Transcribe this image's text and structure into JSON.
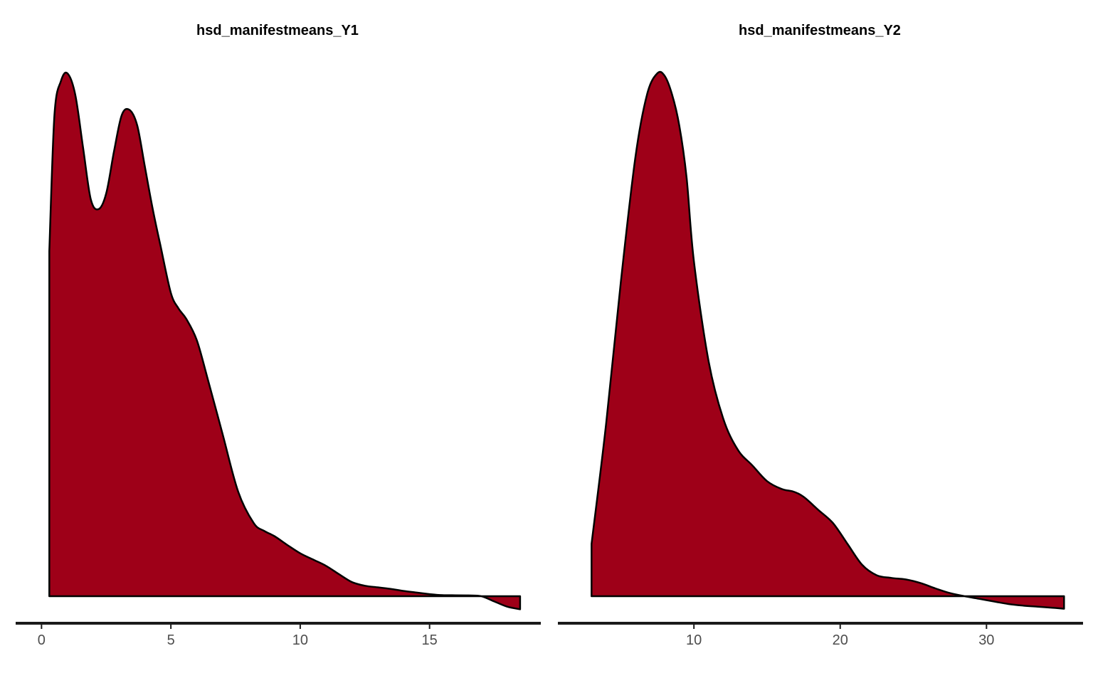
{
  "chart_data": [
    {
      "type": "area",
      "title": "hsd_manifestmeans_Y1",
      "xlabel": "",
      "ylabel": "",
      "xlim": [
        -1.0,
        19.3
      ],
      "xticks": [
        0,
        5,
        10,
        15
      ],
      "tick_labels": [
        "0",
        "5",
        "10",
        "15"
      ],
      "grid": false,
      "fill_color": "#9E0018",
      "line_color": "#000000",
      "x": [
        0.3,
        0.5,
        0.75,
        1.0,
        1.3,
        1.6,
        1.9,
        2.2,
        2.5,
        2.8,
        3.1,
        3.4,
        3.7,
        4.0,
        4.3,
        4.6,
        5.0,
        5.3,
        5.6,
        6.0,
        6.4,
        7.0,
        7.6,
        8.2,
        8.6,
        9.0,
        9.5,
        10.0,
        10.5,
        11.0,
        11.5,
        12.0,
        12.5,
        13.0,
        13.5,
        14.0,
        14.5,
        15.0,
        15.5,
        16.0,
        16.5,
        17.0,
        17.5,
        18.0,
        18.5
      ],
      "y": [
        0.66,
        0.92,
        0.985,
        1.0,
        0.96,
        0.86,
        0.76,
        0.74,
        0.77,
        0.85,
        0.92,
        0.93,
        0.9,
        0.82,
        0.74,
        0.67,
        0.58,
        0.55,
        0.53,
        0.49,
        0.42,
        0.31,
        0.2,
        0.14,
        0.125,
        0.115,
        0.098,
        0.082,
        0.07,
        0.058,
        0.042,
        0.027,
        0.02,
        0.017,
        0.014,
        0.01,
        0.007,
        0.004,
        0.002,
        0.0018,
        0.0015,
        0.0,
        -0.01,
        -0.02,
        -0.025
      ]
    },
    {
      "type": "area",
      "title": "hsd_manifestmeans_Y2",
      "xlabel": "",
      "ylabel": "",
      "xlim": [
        0.7,
        36.6
      ],
      "xticks": [
        10,
        20,
        30
      ],
      "tick_labels": [
        "10",
        "20",
        "30"
      ],
      "grid": false,
      "fill_color": "#9E0018",
      "line_color": "#000000",
      "x": [
        3.0,
        4.0,
        5.0,
        6.0,
        6.8,
        7.5,
        8.0,
        8.5,
        9.0,
        9.5,
        10.0,
        11.0,
        12.0,
        13.0,
        14.0,
        15.0,
        16.0,
        16.8,
        17.5,
        18.5,
        19.5,
        20.5,
        21.5,
        22.5,
        23.5,
        24.5,
        25.5,
        26.5,
        27.5,
        28.5,
        29.5,
        30.5,
        31.5,
        32.5,
        33.5,
        34.5,
        35.3
      ],
      "y": [
        0.1,
        0.33,
        0.6,
        0.84,
        0.96,
        1.0,
        0.995,
        0.96,
        0.9,
        0.8,
        0.64,
        0.45,
        0.34,
        0.28,
        0.25,
        0.22,
        0.205,
        0.2,
        0.19,
        0.165,
        0.14,
        0.1,
        0.06,
        0.04,
        0.035,
        0.032,
        0.025,
        0.015,
        0.006,
        0.0,
        -0.005,
        -0.01,
        -0.015,
        -0.018,
        -0.02,
        -0.022,
        -0.024
      ]
    }
  ]
}
